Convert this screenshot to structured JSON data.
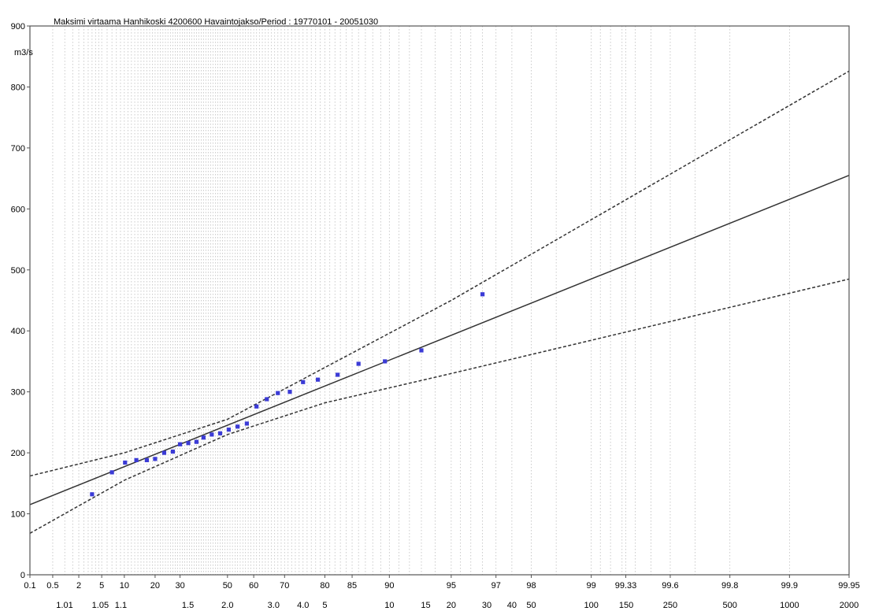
{
  "chart_data": {
    "type": "scatter",
    "title": "Maksimi virtaama Hanhikoski  4200600 Havaintojakso/Period : 19770101 - 20051030",
    "ylabel": "m3/s",
    "ylim": [
      0,
      900
    ],
    "y_ticks": [
      "0",
      "100",
      "200",
      "300",
      "400",
      "500",
      "600",
      "700",
      "800",
      "900"
    ],
    "x_scale": "gumbel-probability",
    "grid": {
      "vertical": true,
      "horizontal": false,
      "style": "dotted"
    },
    "x_ticks_probability": [
      {
        "p": 0.1,
        "label": "0.1"
      },
      {
        "p": 0.5,
        "label": "0.5"
      },
      {
        "p": 2,
        "label": "2"
      },
      {
        "p": 5,
        "label": "5"
      },
      {
        "p": 10,
        "label": "10"
      },
      {
        "p": 20,
        "label": "20"
      },
      {
        "p": 30,
        "label": "30"
      },
      {
        "p": 50,
        "label": "50"
      },
      {
        "p": 60,
        "label": "60"
      },
      {
        "p": 70,
        "label": "70"
      },
      {
        "p": 80,
        "label": "80"
      },
      {
        "p": 85,
        "label": "85"
      },
      {
        "p": 90,
        "label": "90"
      },
      {
        "p": 95,
        "label": "95"
      },
      {
        "p": 97,
        "label": "97"
      },
      {
        "p": 98,
        "label": "98"
      },
      {
        "p": 99,
        "label": "99"
      },
      {
        "p": 99.33,
        "label": "99.33"
      },
      {
        "p": 99.6,
        "label": "99.6"
      },
      {
        "p": 99.8,
        "label": "99.8"
      },
      {
        "p": 99.9,
        "label": "99.9"
      },
      {
        "p": 99.95,
        "label": "99.95"
      }
    ],
    "x_ticks_return_period": [
      {
        "T": 1.01,
        "label": "1.01"
      },
      {
        "T": 1.05,
        "label": "1.05"
      },
      {
        "T": 1.1,
        "label": "1.1"
      },
      {
        "T": 1.5,
        "label": "1.5"
      },
      {
        "T": 2.0,
        "label": "2.0"
      },
      {
        "T": 3.0,
        "label": "3.0"
      },
      {
        "T": 4.0,
        "label": "4.0"
      },
      {
        "T": 5,
        "label": "5"
      },
      {
        "T": 10,
        "label": "10"
      },
      {
        "T": 15,
        "label": "15"
      },
      {
        "T": 20,
        "label": "20"
      },
      {
        "T": 30,
        "label": "30"
      },
      {
        "T": 40,
        "label": "40"
      },
      {
        "T": 50,
        "label": "50"
      },
      {
        "T": 100,
        "label": "100"
      },
      {
        "T": 150,
        "label": "150"
      },
      {
        "T": 250,
        "label": "250"
      },
      {
        "T": 500,
        "label": "500"
      },
      {
        "T": 1000,
        "label": "1000"
      },
      {
        "T": 2000,
        "label": "2000"
      }
    ],
    "observations": [
      {
        "p": 3.5,
        "y": 132
      },
      {
        "p": 7,
        "y": 168
      },
      {
        "p": 10.2,
        "y": 184
      },
      {
        "p": 13.5,
        "y": 188
      },
      {
        "p": 17,
        "y": 188
      },
      {
        "p": 20,
        "y": 190
      },
      {
        "p": 23.5,
        "y": 200
      },
      {
        "p": 27,
        "y": 202
      },
      {
        "p": 30,
        "y": 214
      },
      {
        "p": 33.5,
        "y": 216
      },
      {
        "p": 37,
        "y": 218
      },
      {
        "p": 40,
        "y": 225
      },
      {
        "p": 43.5,
        "y": 230
      },
      {
        "p": 47,
        "y": 232
      },
      {
        "p": 50.5,
        "y": 238
      },
      {
        "p": 54,
        "y": 243
      },
      {
        "p": 57.5,
        "y": 248
      },
      {
        "p": 61,
        "y": 276
      },
      {
        "p": 64.5,
        "y": 288
      },
      {
        "p": 68,
        "y": 298
      },
      {
        "p": 71.5,
        "y": 300
      },
      {
        "p": 75,
        "y": 316
      },
      {
        "p": 78.5,
        "y": 320
      },
      {
        "p": 82.5,
        "y": 328
      },
      {
        "p": 86,
        "y": 346
      },
      {
        "p": 89.5,
        "y": 350
      },
      {
        "p": 93,
        "y": 368
      },
      {
        "p": 96.5,
        "y": 460
      }
    ],
    "fit_line": [
      {
        "p": 0.1,
        "y": 115
      },
      {
        "p": 99.95,
        "y": 655
      }
    ],
    "upper_bound": [
      {
        "p": 0.1,
        "y": 162
      },
      {
        "p": 10,
        "y": 200
      },
      {
        "p": 50,
        "y": 255
      },
      {
        "p": 80,
        "y": 340
      },
      {
        "p": 95,
        "y": 450
      },
      {
        "p": 99.95,
        "y": 826
      }
    ],
    "lower_bound": [
      {
        "p": 0.1,
        "y": 68
      },
      {
        "p": 10,
        "y": 155
      },
      {
        "p": 50,
        "y": 230
      },
      {
        "p": 80,
        "y": 282
      },
      {
        "p": 95,
        "y": 330
      },
      {
        "p": 99.95,
        "y": 485
      }
    ],
    "colors": {
      "points": "#3b3bd6",
      "lines": "#333333",
      "grid": "#bdbdbd",
      "frame": "#555555"
    }
  }
}
